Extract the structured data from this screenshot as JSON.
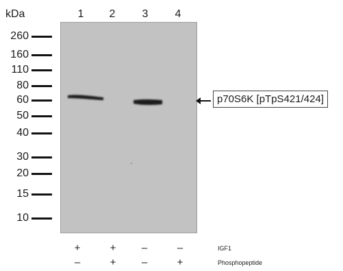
{
  "axis": {
    "unit_label": "kDa",
    "lanes": [
      "1",
      "2",
      "3",
      "4"
    ],
    "markers": [
      "260",
      "160",
      "110",
      "80",
      "60",
      "50",
      "40",
      "30",
      "20",
      "15",
      "10"
    ]
  },
  "band": {
    "label": "p70S6K [pTpS421/424]"
  },
  "treatments": [
    {
      "label": "IGF1",
      "signs": [
        "+",
        "+",
        "–",
        "–"
      ]
    },
    {
      "label": "Phosphopeptide",
      "signs": [
        "–",
        "+",
        "–",
        "+"
      ]
    }
  ],
  "colors": {
    "membrane": "#c2c2c2",
    "band": "#1b1b1b",
    "marker_tick": "#111111"
  }
}
